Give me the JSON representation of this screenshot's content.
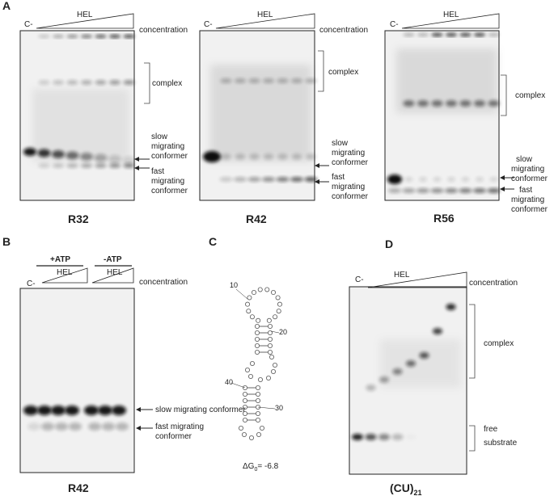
{
  "panels": {
    "a": {
      "letter": "A",
      "gels": [
        {
          "control": "C-",
          "protein": "HEL",
          "concentration": "concentration",
          "complex": "complex",
          "slow": [
            "slow",
            "migrating",
            "conformer"
          ],
          "fast": [
            "fast",
            "migrating",
            "conformer"
          ],
          "name": "R32"
        },
        {
          "control": "C-",
          "protein": "HEL",
          "concentration": "concentration",
          "complex": "complex",
          "slow": [
            "slow",
            "migrating",
            "conformer"
          ],
          "fast": [
            "fast",
            "migrating",
            "conformer"
          ],
          "name": "R42"
        },
        {
          "control": "C-",
          "protein": "HEL",
          "complex": "complex",
          "slow": [
            "slow",
            "migrating",
            "conformer"
          ],
          "fast": [
            "fast",
            "migrating",
            "conformer"
          ],
          "name": "R56"
        }
      ]
    },
    "b": {
      "letter": "B",
      "plus_atp": "+ATP",
      "minus_atp": "-ATP",
      "control": "C-",
      "protein_1": "HEL",
      "protein_2": "HEL",
      "concentration": "concentration",
      "slow": "slow migrating conformer",
      "fast": [
        "fast migrating",
        "conformer"
      ],
      "name": "R42"
    },
    "c": {
      "letter": "C",
      "positions": [
        "10",
        "20",
        "30",
        "40"
      ],
      "energy": {
        "symbol": "ΔG",
        "subscript": "0",
        "value": "= -6.8"
      }
    },
    "d": {
      "letter": "D",
      "control": "C-",
      "protein": "HEL",
      "concentration": "concentration",
      "complex": "complex",
      "free": [
        "free",
        "substrate"
      ],
      "name": {
        "base": "(CU)",
        "subscript": "21"
      }
    }
  }
}
